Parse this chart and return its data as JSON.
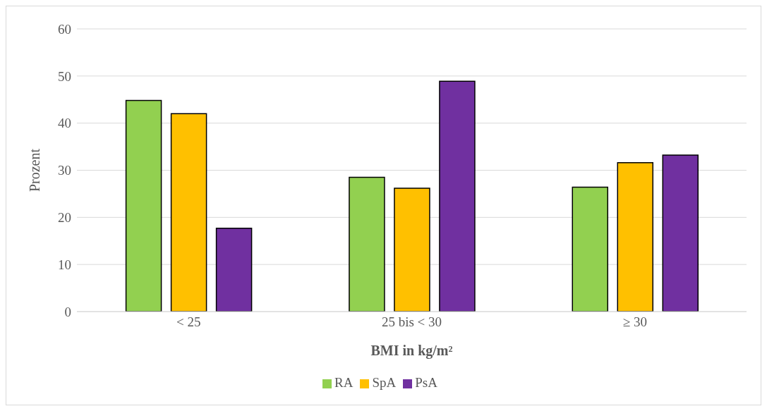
{
  "chart_data": {
    "type": "bar",
    "xlabel": "BMI in kg/m²",
    "ylabel": "Prozent",
    "categories": [
      "< 25",
      "25 bis < 30",
      "≥ 30"
    ],
    "series": [
      {
        "name": "RA",
        "color": "#92d050",
        "values": [
          44.8,
          28.5,
          26.4
        ]
      },
      {
        "name": "SpA",
        "color": "#ffc000",
        "values": [
          42.0,
          26.2,
          31.6
        ]
      },
      {
        "name": "PsA",
        "color": "#7030a0",
        "values": [
          17.7,
          48.9,
          33.2
        ]
      }
    ],
    "ylim": [
      0,
      60
    ],
    "yticks": [
      0,
      10,
      20,
      30,
      40,
      50,
      60
    ],
    "grid": "y",
    "legend": "bottom"
  }
}
